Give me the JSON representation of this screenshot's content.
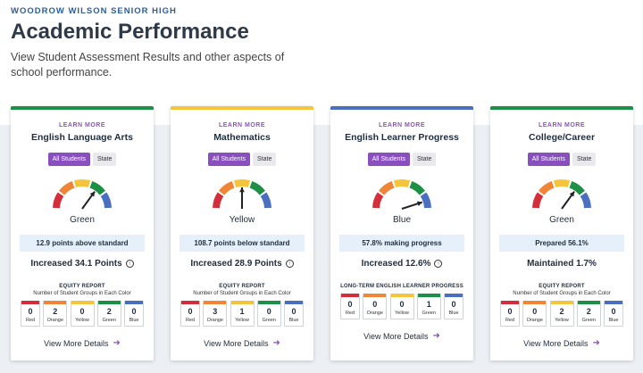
{
  "school": "WOODROW WILSON SENIOR HIGH",
  "title": "Academic Performance",
  "subtitle": "View Student Assessment Results and other aspects of school performance.",
  "colors": {
    "Red": "#d42e3b",
    "Orange": "#f08437",
    "Yellow": "#f4c43c",
    "Green": "#1e8f46",
    "Blue": "#4a6fc0",
    "accent": "#8a4fbf"
  },
  "cards": [
    {
      "learn_more": "LEARN MORE",
      "name": "English Language Arts",
      "toggle": [
        "All Students",
        "State"
      ],
      "gauge_level": "Green",
      "gauge_color": "Green",
      "status": "12.9 points above standard",
      "change": "Increased 34.1 Points",
      "change_info": true,
      "report_title": "EQUITY REPORT",
      "report_subtitle": "Number of Student Groups in Each Color",
      "chips": [
        {
          "label": "Red",
          "count": "0"
        },
        {
          "label": "Orange",
          "count": "2"
        },
        {
          "label": "Yellow",
          "count": "0"
        },
        {
          "label": "Green",
          "count": "2"
        },
        {
          "label": "Blue",
          "count": "0"
        }
      ],
      "details": "View More Details",
      "top_color": "#1e8f46"
    },
    {
      "learn_more": "LEARN MORE",
      "name": "Mathematics",
      "toggle": [
        "All Students",
        "State"
      ],
      "gauge_level": "Yellow",
      "gauge_color": "Yellow",
      "status": "108.7 points below standard",
      "change": "Increased 28.9 Points",
      "change_info": true,
      "report_title": "EQUITY REPORT",
      "report_subtitle": "Number of Student Groups in Each Color",
      "chips": [
        {
          "label": "Red",
          "count": "0"
        },
        {
          "label": "Orange",
          "count": "3"
        },
        {
          "label": "Yellow",
          "count": "1"
        },
        {
          "label": "Green",
          "count": "0"
        },
        {
          "label": "Blue",
          "count": "0"
        }
      ],
      "details": "View More Details",
      "top_color": "#f4c43c"
    },
    {
      "learn_more": "LEARN MORE",
      "name": "English Learner Progress",
      "toggle": [
        "All Students",
        "State"
      ],
      "gauge_level": "Blue",
      "gauge_color": "Blue",
      "status": "57.8% making progress",
      "change": "Increased 12.6%",
      "change_info": true,
      "report_title": "LONG-TERM ENGLISH LEARNER PROGRESS",
      "report_subtitle": "",
      "chips": [
        {
          "label": "Red",
          "count": "0"
        },
        {
          "label": "Orange",
          "count": "0"
        },
        {
          "label": "Yellow",
          "count": "0"
        },
        {
          "label": "Green",
          "count": "1"
        },
        {
          "label": "Blue",
          "count": "0"
        }
      ],
      "details": "View More Details",
      "top_color": "#4a6fc0"
    },
    {
      "learn_more": "LEARN MORE",
      "name": "College/Career",
      "toggle": [
        "All Students",
        "State"
      ],
      "gauge_level": "Green",
      "gauge_color": "Green",
      "status": "Prepared 56.1%",
      "change": "Maintained 1.7%",
      "change_info": false,
      "report_title": "EQUITY REPORT",
      "report_subtitle": "Number of Student Groups in Each Color",
      "chips": [
        {
          "label": "Red",
          "count": "0"
        },
        {
          "label": "Orange",
          "count": "0"
        },
        {
          "label": "Yellow",
          "count": "2"
        },
        {
          "label": "Green",
          "count": "2"
        },
        {
          "label": "Blue",
          "count": "0"
        }
      ],
      "details": "View More Details",
      "top_color": "#1e8f46"
    }
  ]
}
